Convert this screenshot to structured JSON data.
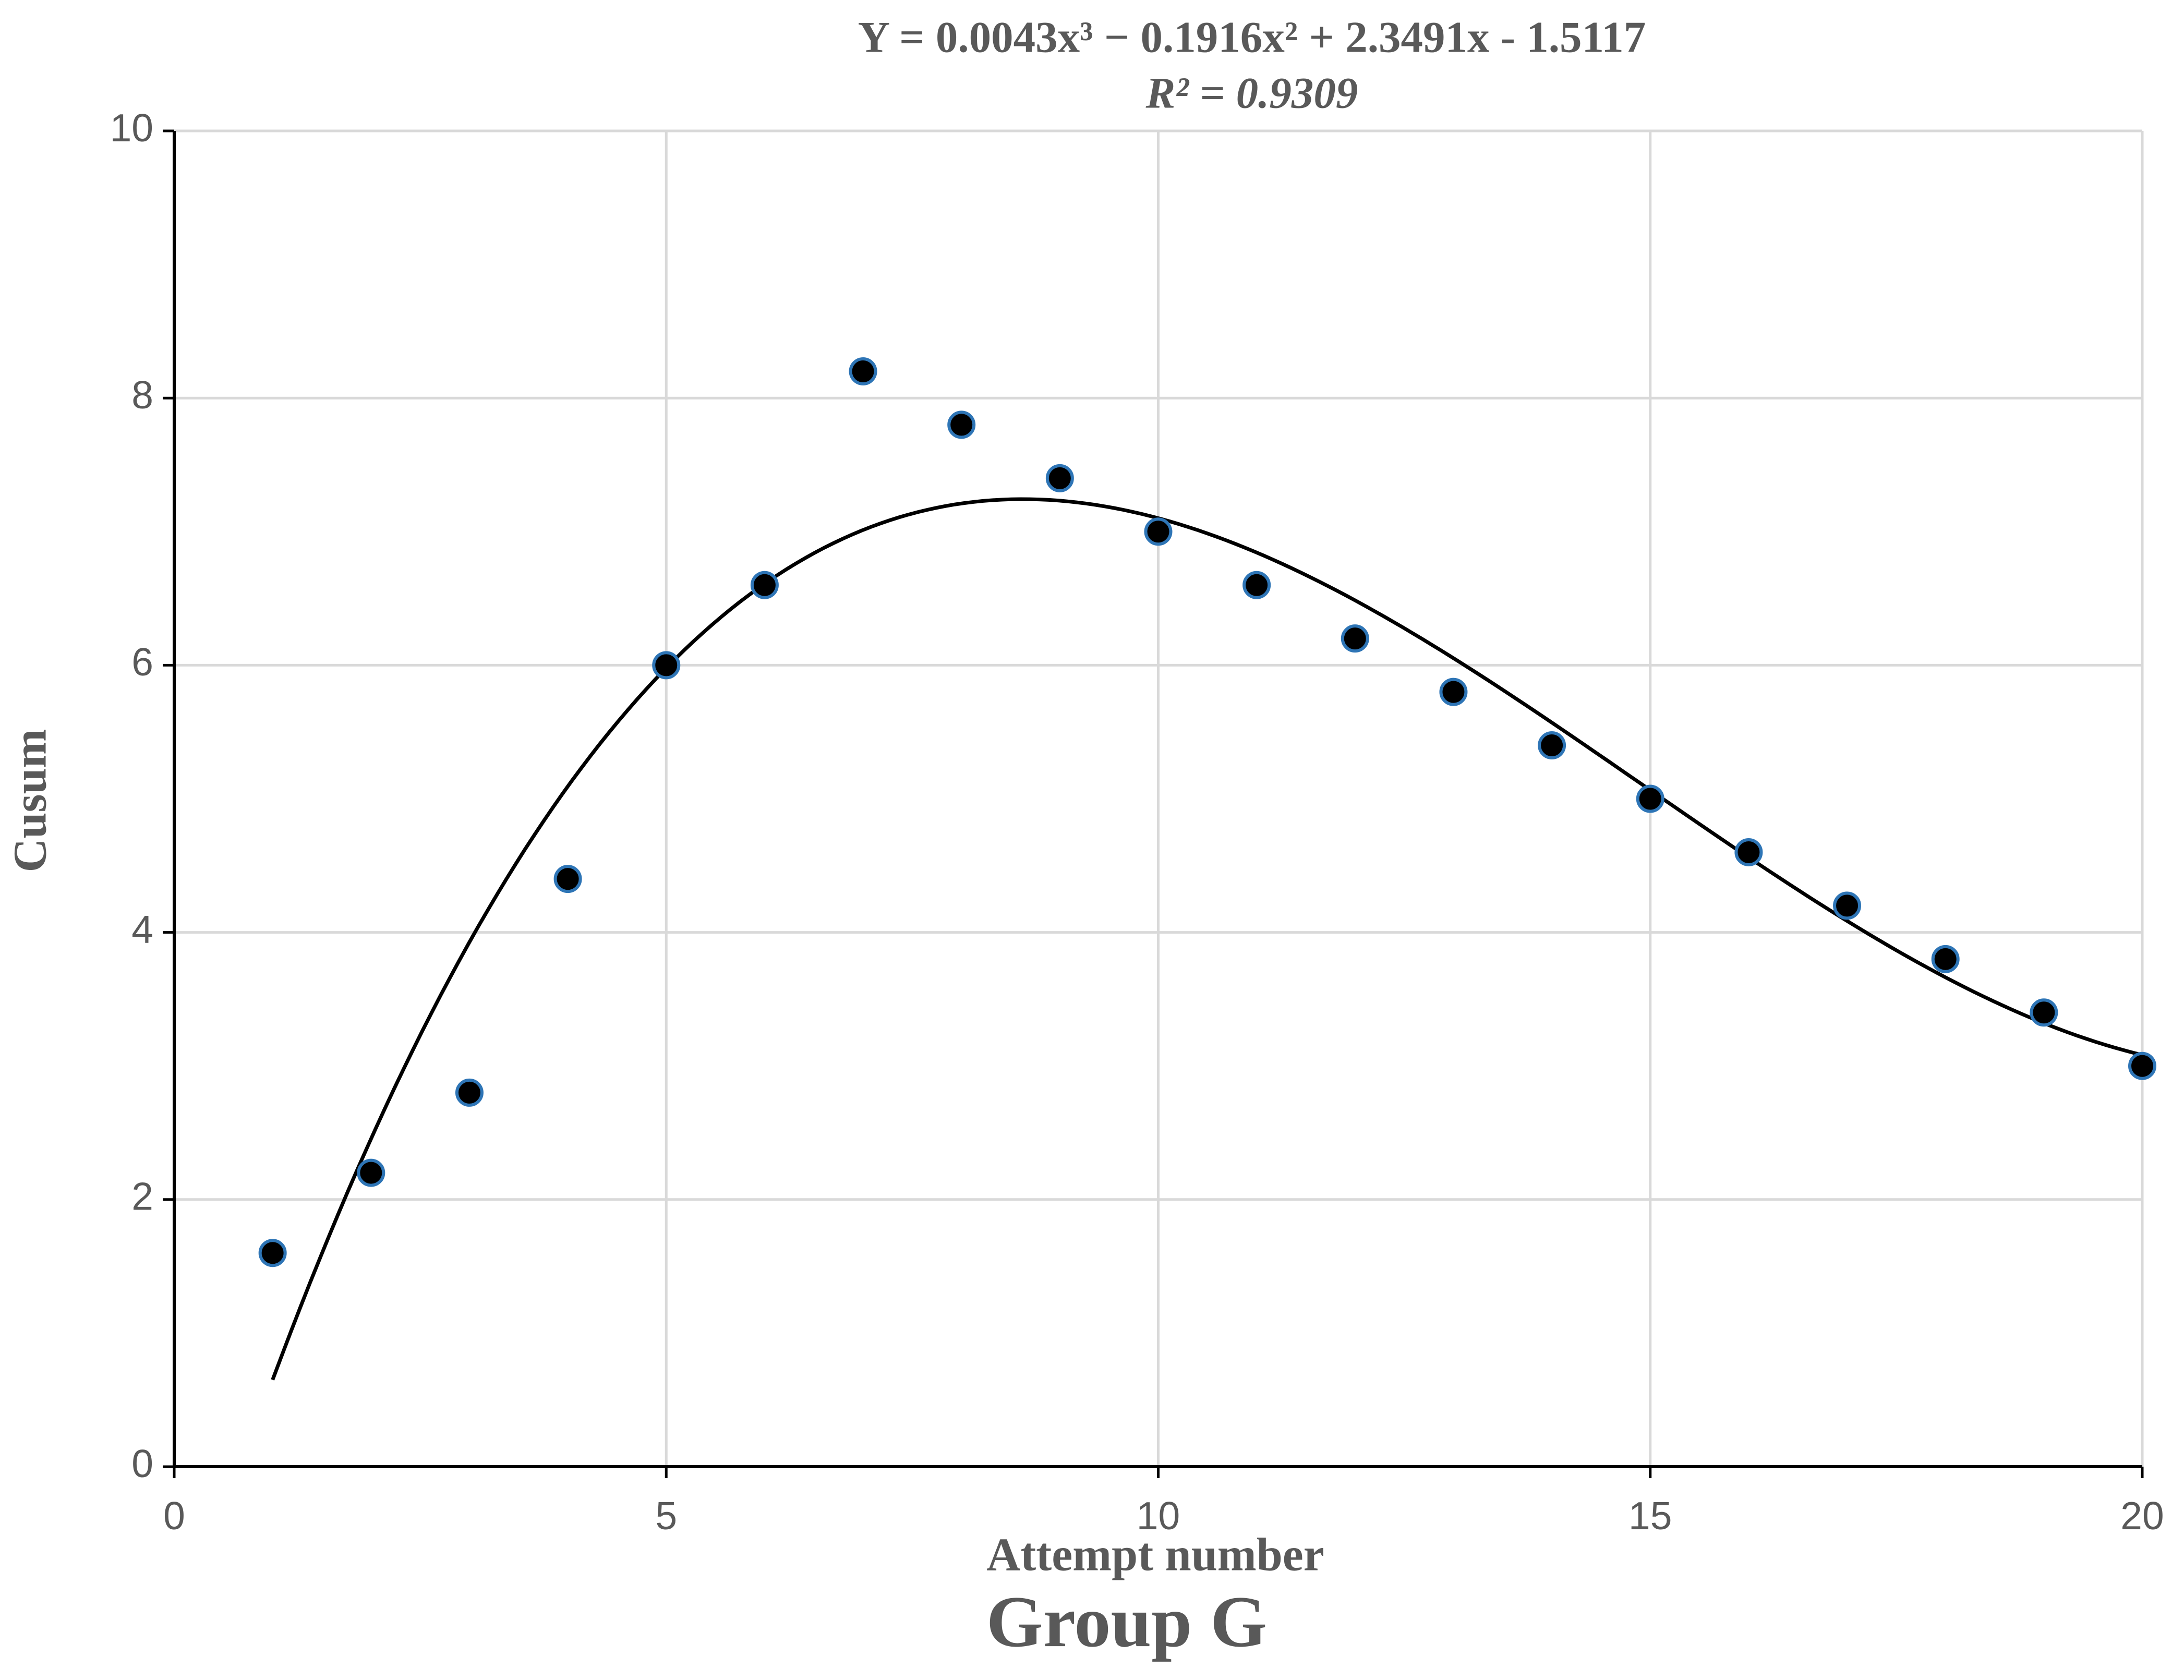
{
  "chart_data": {
    "type": "scatter",
    "title": "Y = 0.0043x³ − 0.1916x² + 2.3491x - 1.5117",
    "subtitle": "R² = 0.9309",
    "x_label": "Attempt number",
    "y_label": "Cusum",
    "caption": "Group G",
    "x": [
      1,
      2,
      3,
      4,
      5,
      6,
      7,
      8,
      9,
      10,
      11,
      12,
      13,
      14,
      15,
      16,
      17,
      18,
      19,
      20
    ],
    "values": [
      1.6,
      2.2,
      2.8,
      4.4,
      6.0,
      6.6,
      8.2,
      7.8,
      7.4,
      7.0,
      6.6,
      6.2,
      5.8,
      5.4,
      5.0,
      4.6,
      4.2,
      3.8,
      3.4,
      3.0
    ],
    "color": "#000000",
    "edge_color": "#2e75b6",
    "trendline": {
      "order": 3,
      "color": "#000000"
    },
    "xlim": [
      0,
      20
    ],
    "xticks": [
      0,
      5,
      10,
      15,
      20
    ],
    "ylim": [
      0,
      10
    ],
    "yticks": [
      0,
      2,
      4,
      6,
      8,
      10
    ],
    "grid": true
  }
}
